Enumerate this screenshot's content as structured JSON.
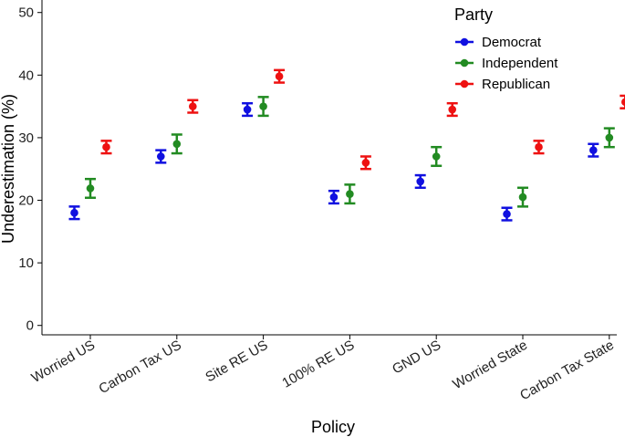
{
  "chart_data": {
    "type": "scatter",
    "title": "",
    "xlabel": "Policy",
    "ylabel": "Underestimation (%)",
    "ylim": [
      -1.5,
      52
    ],
    "yticks": [
      0,
      10,
      20,
      30,
      40,
      50
    ],
    "categories": [
      "Worried US",
      "Carbon Tax US",
      "Site RE US",
      "100% RE US",
      "GND US",
      "Worried State",
      "Carbon Tax State"
    ],
    "legend": {
      "title": "Party",
      "position": "top-right"
    },
    "grid": false,
    "series": [
      {
        "name": "Democrat",
        "color": "#1010e0",
        "values": [
          18.0,
          27.0,
          34.5,
          20.5,
          23.0,
          17.8,
          28.0
        ],
        "lower": [
          17.0,
          26.0,
          33.5,
          19.5,
          22.0,
          16.8,
          27.0
        ],
        "upper": [
          19.0,
          28.0,
          35.5,
          21.5,
          24.0,
          18.8,
          29.0
        ]
      },
      {
        "name": "Independent",
        "color": "#228b22",
        "values": [
          21.9,
          29.0,
          35.0,
          21.0,
          27.0,
          20.5,
          30.0
        ],
        "lower": [
          20.4,
          27.5,
          33.5,
          19.5,
          25.5,
          19.0,
          28.5
        ],
        "upper": [
          23.4,
          30.5,
          36.5,
          22.5,
          28.5,
          22.0,
          31.5
        ]
      },
      {
        "name": "Republican",
        "color": "#ee1111",
        "values": [
          28.5,
          35.0,
          39.8,
          26.0,
          34.5,
          28.5,
          35.7
        ],
        "lower": [
          27.5,
          34.0,
          38.8,
          25.0,
          33.5,
          27.5,
          34.7
        ],
        "upper": [
          29.5,
          36.0,
          40.8,
          27.0,
          35.5,
          29.5,
          36.7
        ]
      }
    ]
  }
}
